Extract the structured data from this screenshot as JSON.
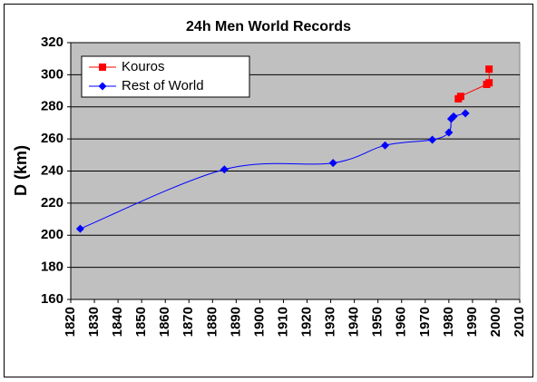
{
  "chart_data": {
    "type": "scatter-line",
    "title": "24h Men World Records",
    "ylabel": "D (km)",
    "xlim": [
      1820,
      2010
    ],
    "xticks": [
      1820,
      1830,
      1840,
      1850,
      1860,
      1870,
      1880,
      1890,
      1900,
      1910,
      1920,
      1930,
      1940,
      1950,
      1960,
      1970,
      1980,
      1990,
      2000,
      2010
    ],
    "ylim": [
      160,
      320
    ],
    "yticks": [
      160,
      180,
      200,
      220,
      240,
      260,
      280,
      300,
      320
    ],
    "grid": true,
    "legend": "top-left",
    "smooth": true,
    "series": [
      {
        "name": "Kouros",
        "color": "#ff0000",
        "marker": "square",
        "x": [
          1984,
          1985,
          1996,
          1997,
          1997
        ],
        "values": [
          285,
          286.5,
          294,
          295,
          303.5
        ]
      },
      {
        "name": "Rest of World",
        "color": "#0000ff",
        "marker": "diamond",
        "x": [
          1824,
          1885,
          1931,
          1953,
          1973,
          1980,
          1981,
          1982,
          1987
        ],
        "values": [
          204,
          241,
          245,
          256,
          259.5,
          264,
          272.5,
          274,
          276
        ]
      }
    ]
  }
}
